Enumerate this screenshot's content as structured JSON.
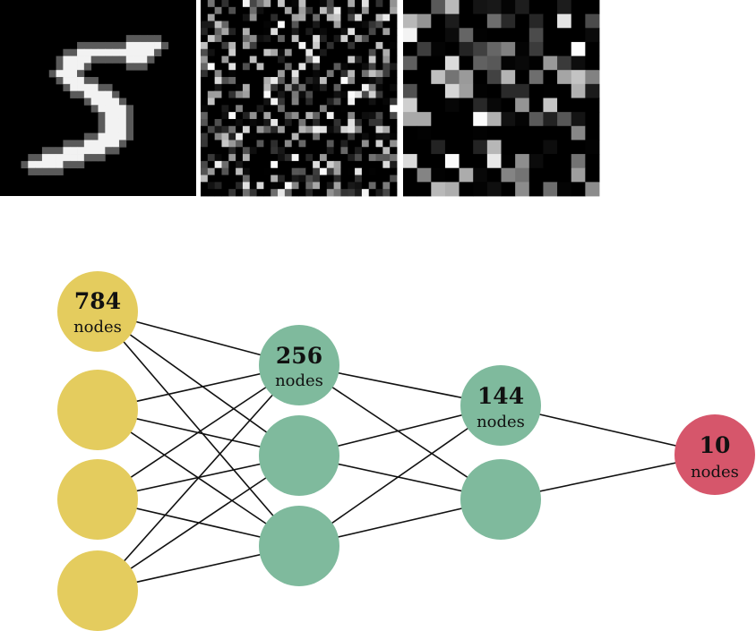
{
  "images": [
    {
      "name": "digit-five-image",
      "pattern": "digit-5"
    },
    {
      "name": "noise-image-1",
      "pattern": "noise",
      "seed": 7
    },
    {
      "name": "noise-image-2",
      "pattern": "noise",
      "seed": 23
    }
  ],
  "network": {
    "layers": [
      {
        "name": "input",
        "count": "784",
        "unit": "nodes",
        "color": "#e4cc5e",
        "circles": 4
      },
      {
        "name": "hidden-1",
        "count": "256",
        "unit": "nodes",
        "color": "#7fba9d",
        "circles": 3
      },
      {
        "name": "hidden-2",
        "count": "144",
        "unit": "nodes",
        "color": "#7fba9d",
        "circles": 2
      },
      {
        "name": "output",
        "count": "10",
        "unit": "nodes",
        "color": "#d6566b",
        "circles": 1
      }
    ],
    "edge_color": "#111111"
  }
}
